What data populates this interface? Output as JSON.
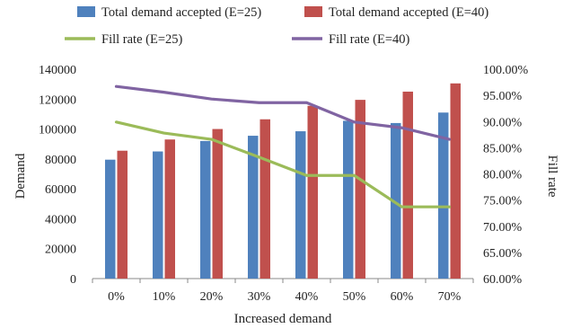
{
  "chart_data": {
    "type": "bar",
    "xlabel": "Increased demand",
    "ylabel": "Demand",
    "y2label": "Fill rate",
    "categories": [
      "0%",
      "10%",
      "20%",
      "30%",
      "40%",
      "50%",
      "60%",
      "70%"
    ],
    "ylim": [
      0,
      140000
    ],
    "yticks": [
      "0",
      "20000",
      "40000",
      "60000",
      "80000",
      "100000",
      "120000",
      "140000"
    ],
    "y2lim": [
      0.6,
      1.0
    ],
    "y2ticks": [
      "60.00%",
      "65.00%",
      "70.00%",
      "75.00%",
      "80.00%",
      "85.00%",
      "90.00%",
      "95.00%",
      "100.00%"
    ],
    "grid": false,
    "legend_position": "top",
    "series": [
      {
        "name": "Total demand accepted (E=25)",
        "kind": "bar",
        "axis": "left",
        "color": "#4f81bd",
        "values": [
          79500,
          85000,
          92000,
          95500,
          98500,
          105500,
          104000,
          111000
        ]
      },
      {
        "name": "Total demand accepted (E=40)",
        "kind": "bar",
        "axis": "left",
        "color": "#c0504d",
        "values": [
          85500,
          93000,
          100000,
          106500,
          115500,
          119500,
          125000,
          130500
        ]
      },
      {
        "name": "Fill rate (E=25)",
        "kind": "line",
        "axis": "right",
        "color": "#9bbb59",
        "values": [
          0.899,
          0.878,
          0.866,
          0.832,
          0.797,
          0.797,
          0.737,
          0.737
        ]
      },
      {
        "name": "Fill rate (E=40)",
        "kind": "line",
        "axis": "right",
        "color": "#8064a2",
        "values": [
          0.967,
          0.956,
          0.943,
          0.936,
          0.936,
          0.899,
          0.888,
          0.866
        ]
      }
    ]
  }
}
